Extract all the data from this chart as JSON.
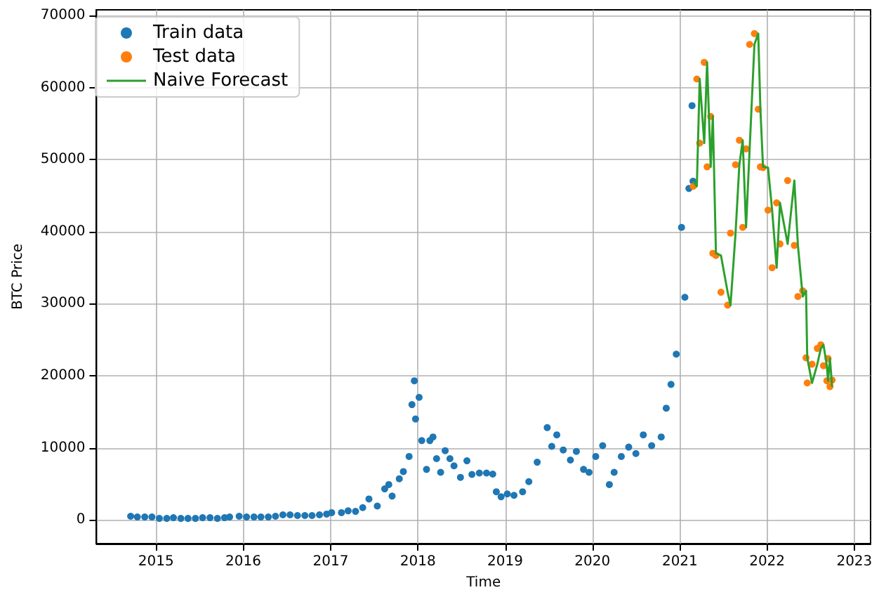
{
  "chart_data": {
    "type": "scatter",
    "xlabel": "Time",
    "ylabel": "BTC Price",
    "xlim": [
      "2014-04-27",
      "2023-03-10"
    ],
    "xticks": [
      "2015",
      "2016",
      "2017",
      "2018",
      "2019",
      "2020",
      "2021",
      "2022",
      "2023"
    ],
    "ylim": [
      -3300,
      70800
    ],
    "yticks": [
      0,
      10000,
      20000,
      30000,
      40000,
      50000,
      60000,
      70000
    ],
    "grid": true,
    "legend": "top left",
    "series": [
      {
        "name": "Train data",
        "marker": "circle",
        "color": "#1f77b4",
        "x": [
          "2014-09-17",
          "2014-10-15",
          "2014-11-15",
          "2014-12-15",
          "2015-01-15",
          "2015-02-15",
          "2015-03-15",
          "2015-04-15",
          "2015-05-15",
          "2015-06-15",
          "2015-07-15",
          "2015-08-15",
          "2015-09-15",
          "2015-10-15",
          "2015-11-05",
          "2015-12-15",
          "2016-01-15",
          "2016-02-15",
          "2016-03-15",
          "2016-04-15",
          "2016-05-15",
          "2016-06-15",
          "2016-07-15",
          "2016-08-15",
          "2016-09-15",
          "2016-10-15",
          "2016-11-15",
          "2016-12-15",
          "2017-01-05",
          "2017-02-15",
          "2017-03-15",
          "2017-04-15",
          "2017-05-15",
          "2017-06-10",
          "2017-07-15",
          "2017-08-15",
          "2017-09-01",
          "2017-09-15",
          "2017-10-15",
          "2017-11-01",
          "2017-11-25",
          "2017-12-07",
          "2017-12-17",
          "2017-12-22",
          "2018-01-06",
          "2018-01-17",
          "2018-02-06",
          "2018-02-20",
          "2018-03-05",
          "2018-03-20",
          "2018-04-06",
          "2018-04-25",
          "2018-05-15",
          "2018-06-01",
          "2018-06-28",
          "2018-07-25",
          "2018-08-15",
          "2018-09-15",
          "2018-10-15",
          "2018-11-10",
          "2018-11-25",
          "2018-12-15",
          "2019-01-10",
          "2019-02-07",
          "2019-03-15",
          "2019-04-10",
          "2019-05-15",
          "2019-06-26",
          "2019-07-15",
          "2019-08-05",
          "2019-09-01",
          "2019-10-01",
          "2019-10-26",
          "2019-11-25",
          "2019-12-18",
          "2020-01-15",
          "2020-02-13",
          "2020-03-12",
          "2020-04-01",
          "2020-05-01",
          "2020-06-01",
          "2020-07-01",
          "2020-08-01",
          "2020-09-05",
          "2020-10-15",
          "2020-11-05",
          "2020-11-25",
          "2020-12-17",
          "2021-01-08",
          "2021-01-22",
          "2021-02-08",
          "2021-02-21",
          "2021-02-25"
        ],
        "values": [
          500,
          400,
          400,
          400,
          200,
          200,
          300,
          200,
          200,
          200,
          300,
          300,
          200,
          300,
          400,
          500,
          400,
          400,
          400,
          400,
          500,
          700,
          700,
          600,
          600,
          600,
          700,
          800,
          1000,
          1000,
          1250,
          1180,
          1700,
          2900,
          1920,
          4300,
          4900,
          3300,
          5700,
          6700,
          8800,
          16000,
          19300,
          14000,
          17000,
          11000,
          7000,
          11000,
          11500,
          8500,
          6600,
          9600,
          8500,
          7500,
          5900,
          8200,
          6300,
          6500,
          6500,
          6350,
          3900,
          3200,
          3600,
          3400,
          3900,
          5300,
          8000,
          12800,
          10200,
          11800,
          9700,
          8300,
          9500,
          7000,
          6600,
          8800,
          10300,
          4900,
          6600,
          8800,
          10100,
          9200,
          11800,
          10300,
          11500,
          15500,
          18800,
          23000,
          40600,
          30900,
          46000,
          57500,
          47000
        ]
      },
      {
        "name": "Test data",
        "marker": "circle",
        "color": "#ff7f0e",
        "x": [
          "2021-02-26",
          "2021-03-13",
          "2021-03-25",
          "2021-04-13",
          "2021-04-25",
          "2021-05-10",
          "2021-05-19",
          "2021-06-01",
          "2021-06-22",
          "2021-07-20",
          "2021-08-01",
          "2021-08-22",
          "2021-09-07",
          "2021-09-21",
          "2021-10-05",
          "2021-10-20",
          "2021-11-09",
          "2021-11-25",
          "2021-12-04",
          "2021-12-15",
          "2022-01-05",
          "2022-01-22",
          "2022-02-10",
          "2022-02-24",
          "2022-03-28",
          "2022-04-25",
          "2022-05-10",
          "2022-05-30",
          "2022-06-13",
          "2022-06-18",
          "2022-07-08",
          "2022-07-30",
          "2022-08-14",
          "2022-08-25",
          "2022-09-08",
          "2022-09-13",
          "2022-09-21",
          "2022-09-30"
        ],
        "values": [
          46300,
          61200,
          52300,
          63500,
          49000,
          56000,
          37000,
          36700,
          31600,
          29800,
          39800,
          49300,
          52700,
          40600,
          51500,
          66000,
          67500,
          57000,
          49000,
          48900,
          43000,
          35000,
          44000,
          38300,
          47100,
          38100,
          31000,
          31800,
          22500,
          19000,
          21600,
          23800,
          24300,
          21400,
          19300,
          22400,
          18500,
          19400
        ]
      },
      {
        "name": "Naive Forecast",
        "type": "line",
        "marker": "none",
        "line_style": "solid",
        "color": "#2ca02c",
        "x": [
          "2021-02-26",
          "2021-03-13",
          "2021-03-25",
          "2021-04-13",
          "2021-04-25",
          "2021-05-10",
          "2021-05-19",
          "2021-06-01",
          "2021-06-22",
          "2021-07-20",
          "2021-08-01",
          "2021-08-22",
          "2021-09-07",
          "2021-09-21",
          "2021-10-05",
          "2021-10-20",
          "2021-11-09",
          "2021-11-25",
          "2021-12-04",
          "2021-12-15",
          "2022-01-05",
          "2022-01-22",
          "2022-02-10",
          "2022-02-24",
          "2022-03-28",
          "2022-04-25",
          "2022-05-10",
          "2022-05-30",
          "2022-06-13",
          "2022-06-18",
          "2022-07-08",
          "2022-07-30",
          "2022-08-14",
          "2022-08-25",
          "2022-09-08",
          "2022-09-13",
          "2022-09-21",
          "2022-09-30"
        ],
        "values": [
          47000,
          46300,
          61200,
          52300,
          63500,
          49000,
          56000,
          37000,
          36700,
          31600,
          29800,
          39800,
          49300,
          52700,
          40600,
          51500,
          66000,
          67500,
          57000,
          49000,
          48900,
          43000,
          35000,
          44000,
          38300,
          47100,
          38100,
          31000,
          31800,
          22500,
          19000,
          21600,
          23800,
          24300,
          21400,
          19300,
          22400,
          18500
        ]
      }
    ]
  }
}
